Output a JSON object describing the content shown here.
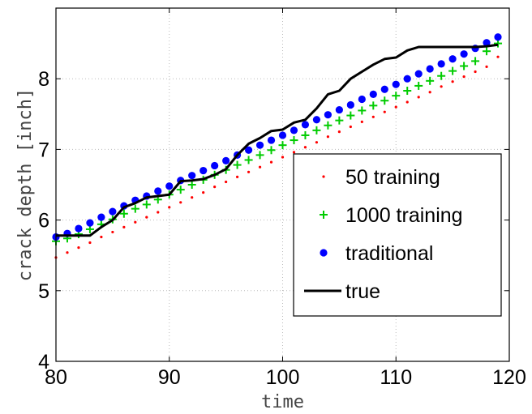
{
  "chart_data": {
    "type": "line",
    "xlabel": "time",
    "ylabel": "crack depth [inch]",
    "xlim": [
      80,
      120
    ],
    "ylim": [
      4,
      9
    ],
    "xticks": [
      80,
      90,
      100,
      110,
      120
    ],
    "yticks": [
      4,
      5,
      6,
      7,
      8
    ],
    "grid": true,
    "legend_position": "lower-right",
    "series": [
      {
        "name": "50 training",
        "marker": "dot",
        "color": "#ff0000",
        "x": [
          80,
          81,
          82,
          83,
          84,
          85,
          86,
          87,
          88,
          89,
          90,
          91,
          92,
          93,
          94,
          95,
          96,
          97,
          98,
          99,
          100,
          101,
          102,
          103,
          104,
          105,
          106,
          107,
          108,
          109,
          110,
          111,
          112,
          113,
          114,
          115,
          116,
          117,
          118,
          119
        ],
        "y": [
          5.47,
          5.54,
          5.61,
          5.68,
          5.76,
          5.83,
          5.9,
          5.97,
          6.04,
          6.11,
          6.18,
          6.25,
          6.32,
          6.39,
          6.47,
          6.54,
          6.61,
          6.68,
          6.75,
          6.82,
          6.89,
          6.96,
          7.03,
          7.1,
          7.18,
          7.25,
          7.32,
          7.39,
          7.46,
          7.53,
          7.6,
          7.67,
          7.74,
          7.81,
          7.89,
          7.96,
          8.03,
          8.1,
          8.17,
          8.31
        ]
      },
      {
        "name": "1000 training",
        "marker": "plus",
        "color": "#00cc00",
        "x": [
          80,
          81,
          82,
          83,
          84,
          85,
          86,
          87,
          88,
          89,
          90,
          91,
          92,
          93,
          94,
          95,
          96,
          97,
          98,
          99,
          100,
          101,
          102,
          103,
          104,
          105,
          106,
          107,
          108,
          109,
          110,
          111,
          112,
          113,
          114,
          115,
          116,
          117,
          118,
          119
        ],
        "y": [
          5.7,
          5.74,
          5.8,
          5.87,
          5.94,
          6.01,
          6.09,
          6.16,
          6.22,
          6.29,
          6.36,
          6.43,
          6.5,
          6.57,
          6.64,
          6.71,
          6.78,
          6.85,
          6.92,
          6.99,
          7.06,
          7.13,
          7.2,
          7.27,
          7.34,
          7.41,
          7.48,
          7.55,
          7.62,
          7.69,
          7.76,
          7.83,
          7.9,
          7.97,
          8.04,
          8.11,
          8.18,
          8.25,
          8.39,
          8.5
        ]
      },
      {
        "name": "traditional",
        "marker": "circle",
        "color": "#0000ff",
        "x": [
          80,
          81,
          82,
          83,
          84,
          85,
          86,
          87,
          88,
          89,
          90,
          91,
          92,
          93,
          94,
          95,
          96,
          97,
          98,
          99,
          100,
          101,
          102,
          103,
          104,
          105,
          106,
          107,
          108,
          109,
          110,
          111,
          112,
          113,
          114,
          115,
          116,
          117,
          118,
          119
        ],
        "y": [
          5.76,
          5.81,
          5.88,
          5.96,
          6.04,
          6.12,
          6.2,
          6.28,
          6.34,
          6.41,
          6.48,
          6.56,
          6.63,
          6.7,
          6.77,
          6.84,
          6.92,
          6.99,
          7.06,
          7.13,
          7.2,
          7.27,
          7.35,
          7.42,
          7.49,
          7.56,
          7.63,
          7.71,
          7.78,
          7.85,
          7.92,
          8.0,
          8.07,
          8.14,
          8.21,
          8.28,
          8.35,
          8.43,
          8.51,
          8.59
        ]
      },
      {
        "name": "true",
        "marker": "none",
        "color": "#000000",
        "x": [
          80,
          81,
          82,
          83,
          84,
          85,
          86,
          87,
          88,
          89,
          90,
          91,
          92,
          93,
          94,
          95,
          96,
          97,
          98,
          99,
          100,
          101,
          102,
          103,
          104,
          105,
          106,
          107,
          108,
          109,
          110,
          111,
          112,
          113,
          114,
          115,
          116,
          117,
          118,
          119
        ],
        "y": [
          5.78,
          5.78,
          5.78,
          5.78,
          5.9,
          6.0,
          6.18,
          6.24,
          6.32,
          6.34,
          6.36,
          6.55,
          6.56,
          6.58,
          6.64,
          6.72,
          6.92,
          7.08,
          7.16,
          7.26,
          7.28,
          7.38,
          7.42,
          7.58,
          7.78,
          7.83,
          8.0,
          8.1,
          8.2,
          8.28,
          8.3,
          8.4,
          8.45,
          8.45,
          8.45,
          8.45,
          8.45,
          8.45,
          8.46,
          8.48
        ]
      }
    ]
  }
}
